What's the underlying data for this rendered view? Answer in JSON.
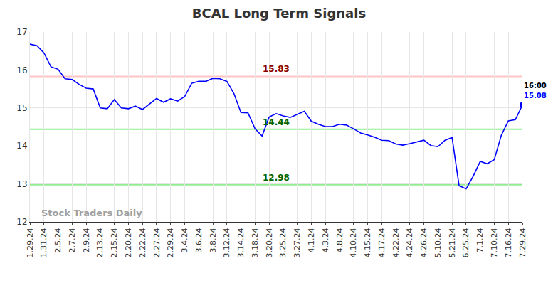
{
  "chart_data": {
    "type": "line",
    "title": "BCAL Long Term Signals",
    "watermark": "Stock Traders Daily",
    "color": "#0000ff",
    "marker": "circle",
    "grid": true,
    "ylim": [
      12,
      17
    ],
    "yticks": [
      12,
      13,
      14,
      15,
      16,
      17
    ],
    "categories": [
      "1.29.24",
      null,
      "1.31.24",
      null,
      "2.5.24",
      null,
      "2.7.24",
      null,
      "2.9.24",
      null,
      "2.13.24",
      null,
      "2.15.24",
      null,
      "2.20.24",
      null,
      "2.22.24",
      null,
      "2.27.24",
      null,
      "2.29.24",
      null,
      "3.4.24",
      null,
      "3.6.24",
      null,
      "3.8.24",
      null,
      "3.12.24",
      null,
      "3.14.24",
      null,
      "3.18.24",
      null,
      "3.20.24",
      null,
      "3.25.24",
      null,
      "3.27.24",
      null,
      "4.1.24",
      null,
      "4.3.24",
      null,
      "4.8.24",
      null,
      "4.10.24",
      null,
      "4.15.24",
      null,
      "4.17.24",
      null,
      "4.22.24",
      null,
      "4.24.24",
      null,
      "4.26.24",
      null,
      "5.10.24",
      null,
      "5.21.24",
      null,
      "6.25.24",
      null,
      "7.1.24",
      null,
      "7.10.24",
      null,
      "7.16.24",
      null,
      "7.29.24"
    ],
    "values": [
      16.68,
      16.64,
      16.45,
      16.08,
      16.02,
      15.77,
      15.75,
      15.62,
      15.52,
      15.5,
      15.0,
      14.98,
      15.22,
      15.0,
      14.98,
      15.05,
      14.96,
      15.1,
      15.25,
      15.15,
      15.24,
      15.18,
      15.3,
      15.65,
      15.7,
      15.7,
      15.78,
      15.77,
      15.7,
      15.38,
      14.88,
      14.87,
      14.45,
      14.26,
      14.76,
      14.85,
      14.79,
      14.75,
      14.83,
      14.91,
      14.65,
      14.57,
      14.51,
      14.51,
      14.57,
      14.55,
      14.45,
      14.34,
      14.29,
      14.23,
      14.15,
      14.14,
      14.05,
      14.02,
      14.06,
      14.11,
      14.15,
      14.01,
      13.98,
      14.15,
      14.22,
      12.95,
      12.87,
      13.2,
      13.59,
      13.53,
      13.64,
      14.28,
      14.66,
      14.69,
      15.08
    ],
    "reference_lines": [
      {
        "value": 15.83,
        "color": "#ffc4c4",
        "label_color": "#8b0000"
      },
      {
        "value": 14.44,
        "color": "#90ee90",
        "label_color": "#006400"
      },
      {
        "value": 12.98,
        "color": "#90ee90",
        "label_color": "#006400"
      }
    ],
    "end_label": {
      "time": "16:00"
    }
  }
}
